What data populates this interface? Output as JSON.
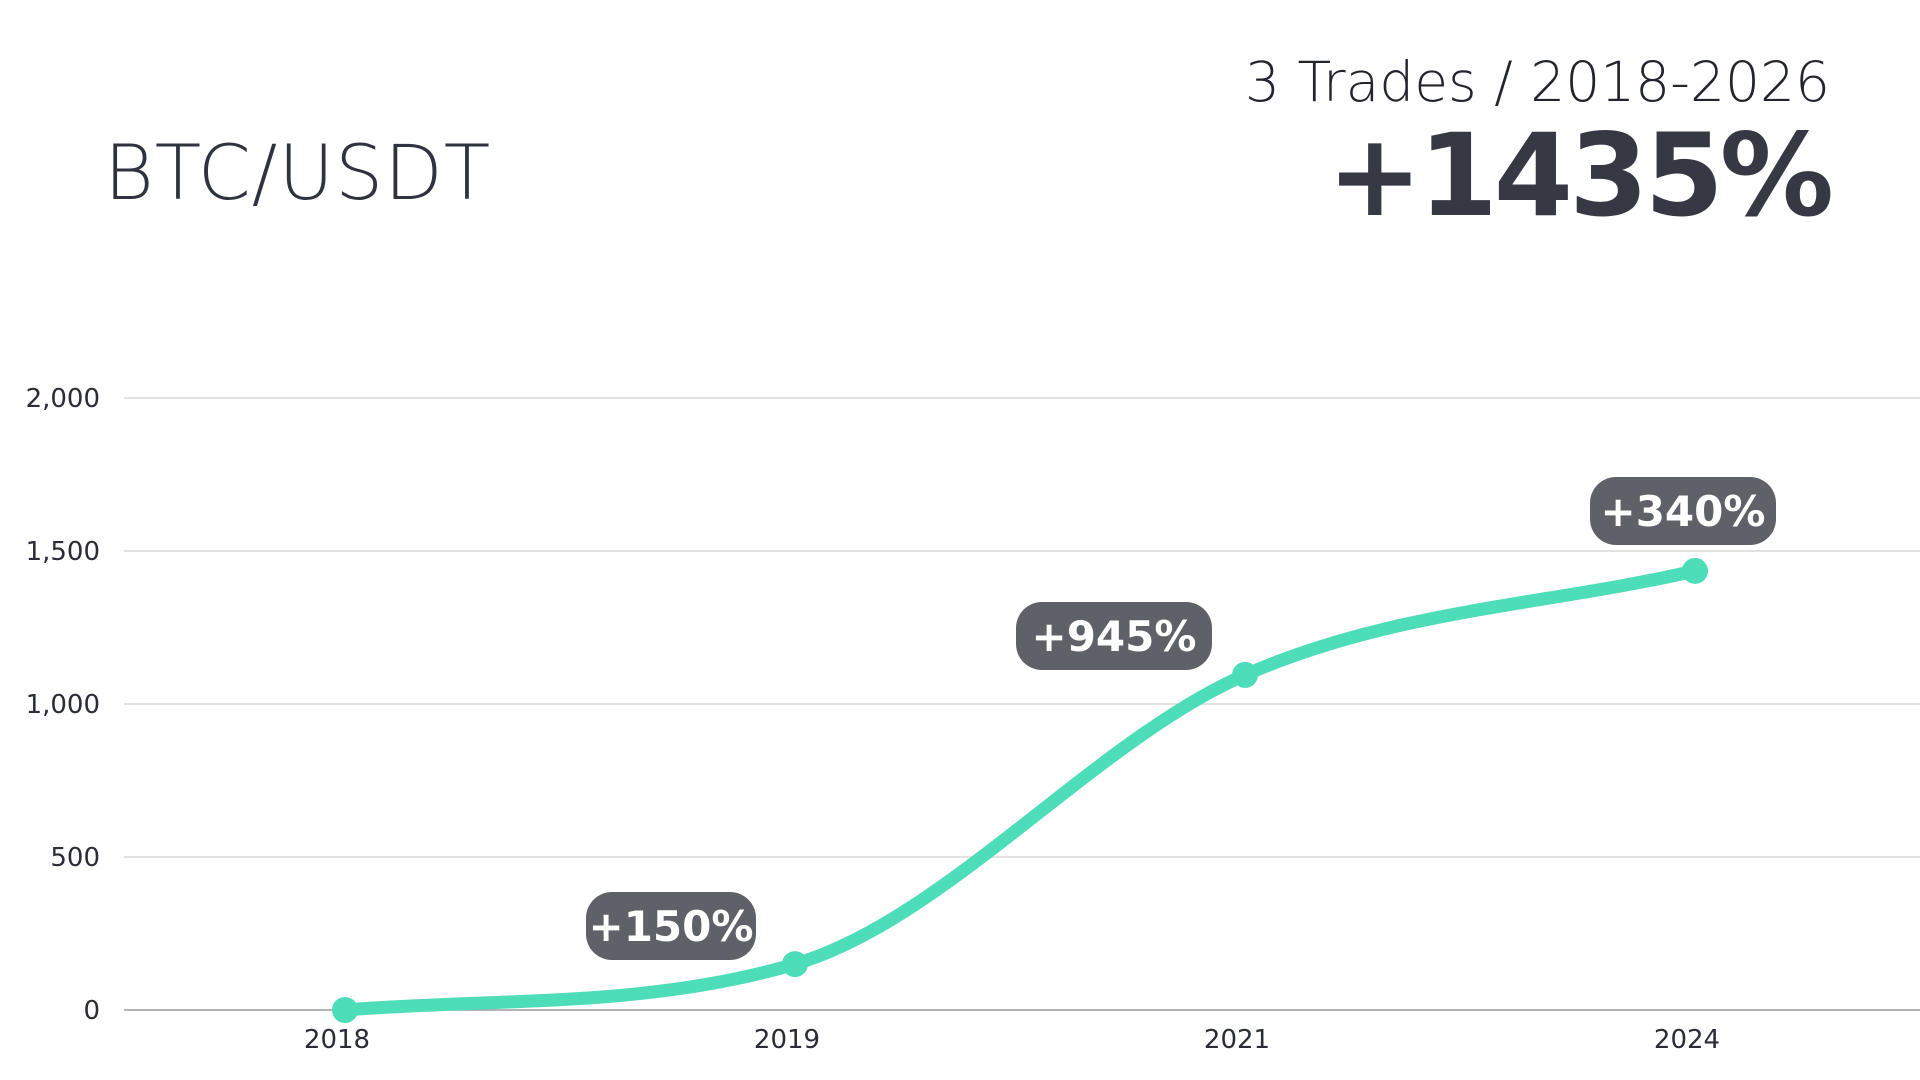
{
  "header": {
    "pair": "BTC/USDT",
    "summary": "3 Trades / 2018-2026",
    "total_return": "+1435%"
  },
  "colors": {
    "line": "#4dddb8",
    "callout_bg": "#5f6168",
    "grid": "#d9d9d9",
    "text_dark": "#363944"
  },
  "chart_data": {
    "type": "line",
    "title": "",
    "xlabel": "",
    "ylabel": "",
    "categories": [
      "2018",
      "2019",
      "2021",
      "2024"
    ],
    "values": [
      0,
      150,
      1095,
      1435
    ],
    "ylim": [
      0,
      2000
    ],
    "yticks": [
      0,
      500,
      1000,
      1500,
      2000
    ],
    "ytick_labels": [
      "0",
      "500",
      "1,000",
      "1,500",
      "2,000"
    ],
    "grid": true,
    "legend": "none",
    "annotations": [
      {
        "category": "2019",
        "text": "+150%"
      },
      {
        "category": "2021",
        "text": "+945%"
      },
      {
        "category": "2024",
        "text": "+340%"
      }
    ]
  }
}
